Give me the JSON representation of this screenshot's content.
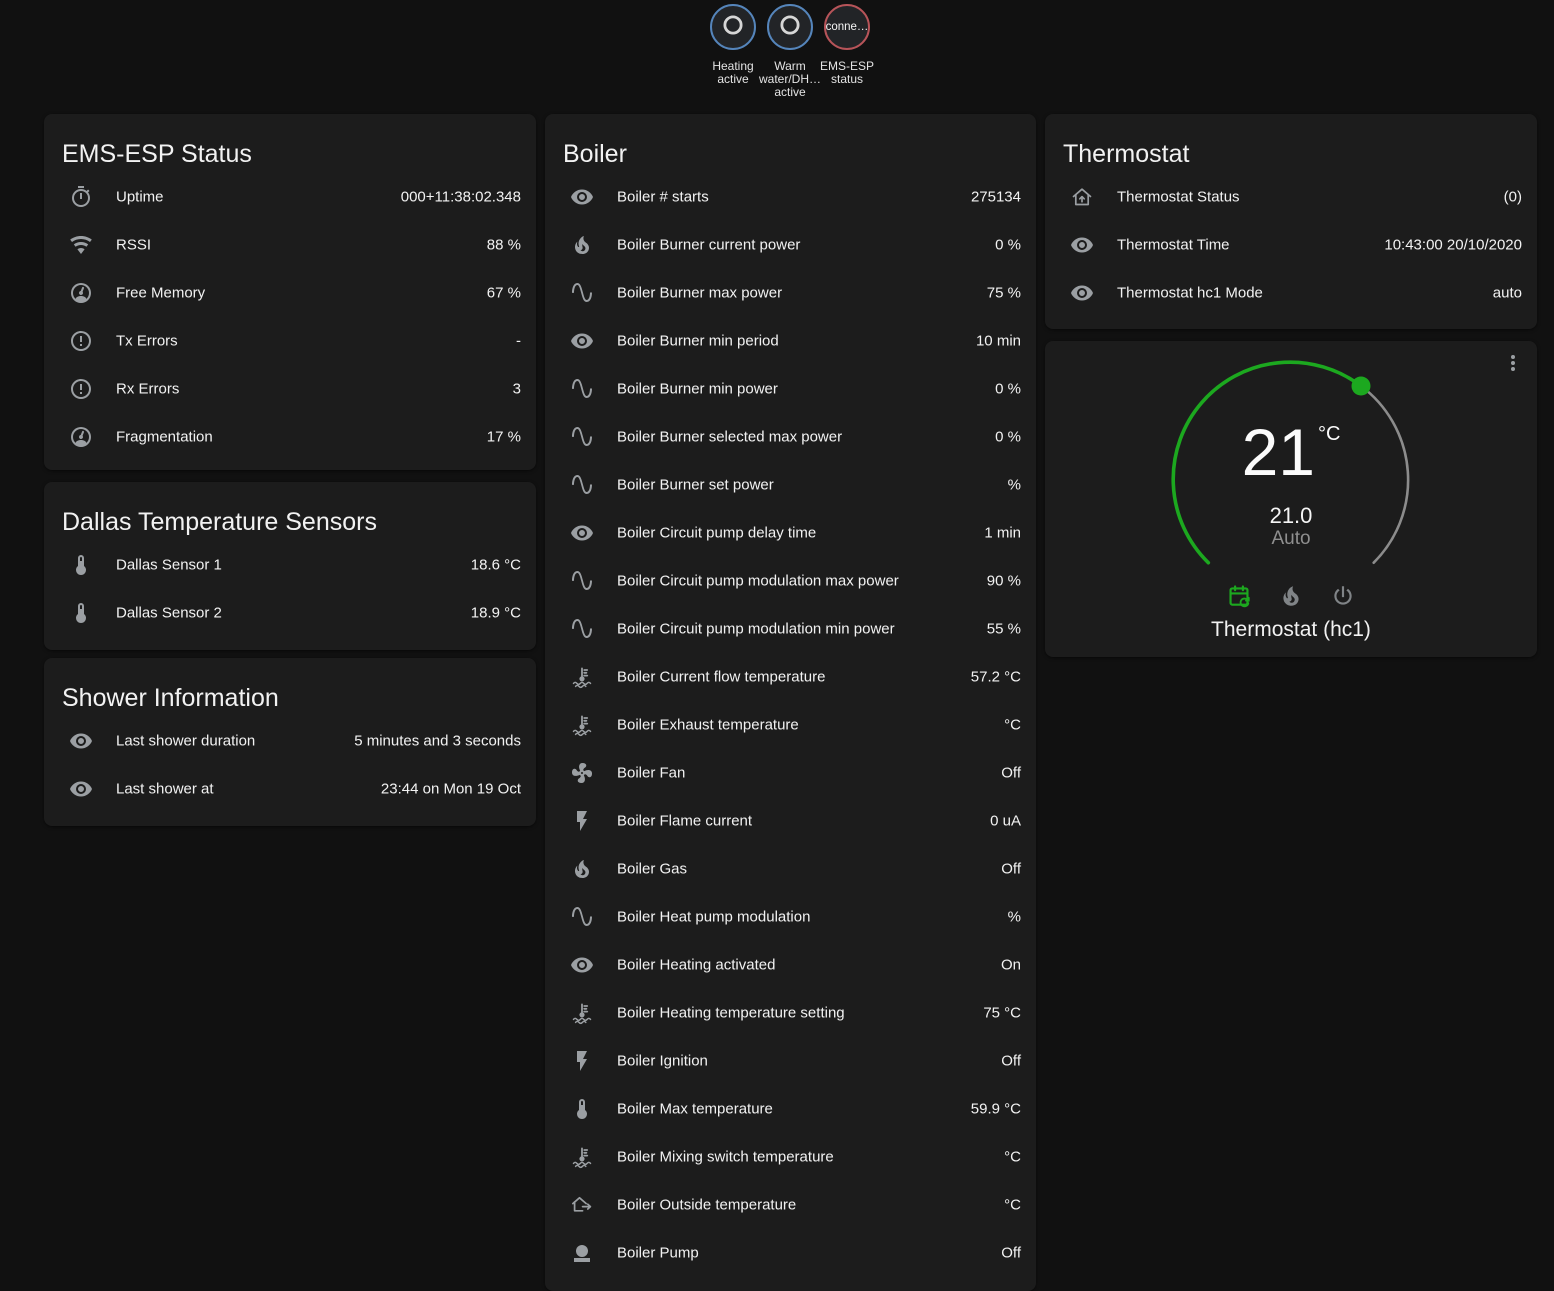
{
  "colors": {
    "accent_green": "#1ca81f",
    "badge_blue": "#5585bb",
    "badge_red": "#b75459",
    "card_background": "#1c1c1c",
    "page_background": "#111111",
    "icon_gray": "#9b9fa3"
  },
  "badges": [
    {
      "label": "Heating active",
      "icon": "ring"
    },
    {
      "label": "Warm water/DH… active",
      "icon": "ring"
    },
    {
      "label": "EMS-ESP status",
      "state": "conne…"
    }
  ],
  "cards": {
    "ems_status": {
      "title": "EMS-ESP Status",
      "rows": [
        {
          "icon": "timer",
          "label": "Uptime",
          "value": "000+11:38:02.348"
        },
        {
          "icon": "wifi",
          "label": "RSSI",
          "value": "88 %"
        },
        {
          "icon": "gauge",
          "label": "Free Memory",
          "value": "67 %"
        },
        {
          "icon": "alert-circle",
          "label": "Tx Errors",
          "value": "-"
        },
        {
          "icon": "alert-circle",
          "label": "Rx Errors",
          "value": "3"
        },
        {
          "icon": "gauge",
          "label": "Fragmentation",
          "value": "17 %"
        }
      ]
    },
    "dallas": {
      "title": "Dallas Temperature Sensors",
      "rows": [
        {
          "icon": "thermometer",
          "label": "Dallas Sensor 1",
          "value": "18.6 °C"
        },
        {
          "icon": "thermometer",
          "label": "Dallas Sensor 2",
          "value": "18.9 °C"
        }
      ]
    },
    "shower": {
      "title": "Shower Information",
      "rows": [
        {
          "icon": "eye",
          "label": "Last shower duration",
          "value": "5 minutes and 3 seconds"
        },
        {
          "icon": "eye",
          "label": "Last shower at",
          "value": "23:44 on Mon 19 Oct"
        }
      ]
    },
    "boiler": {
      "title": "Boiler",
      "rows": [
        {
          "icon": "eye",
          "label": "Boiler # starts",
          "value": "275134"
        },
        {
          "icon": "fire",
          "label": "Boiler Burner current power",
          "value": "0 %"
        },
        {
          "icon": "sine",
          "label": "Boiler Burner max power",
          "value": "75 %"
        },
        {
          "icon": "eye",
          "label": "Boiler Burner min period",
          "value": "10 min"
        },
        {
          "icon": "sine",
          "label": "Boiler Burner min power",
          "value": "0 %"
        },
        {
          "icon": "sine",
          "label": "Boiler Burner selected max power",
          "value": "0 %"
        },
        {
          "icon": "sine",
          "label": "Boiler Burner set power",
          "value": "%"
        },
        {
          "icon": "eye",
          "label": "Boiler Circuit pump delay time",
          "value": "1 min"
        },
        {
          "icon": "sine",
          "label": "Boiler Circuit pump modulation max power",
          "value": "90 %"
        },
        {
          "icon": "sine",
          "label": "Boiler Circuit pump modulation min power",
          "value": "55 %"
        },
        {
          "icon": "coolant",
          "label": "Boiler Current flow temperature",
          "value": "57.2 °C"
        },
        {
          "icon": "coolant",
          "label": "Boiler Exhaust temperature",
          "value": "°C"
        },
        {
          "icon": "fan",
          "label": "Boiler Fan",
          "value": "Off"
        },
        {
          "icon": "flash",
          "label": "Boiler Flame current",
          "value": "0 uA"
        },
        {
          "icon": "fire",
          "label": "Boiler Gas",
          "value": "Off"
        },
        {
          "icon": "sine",
          "label": "Boiler Heat pump modulation",
          "value": "%"
        },
        {
          "icon": "eye",
          "label": "Boiler Heating activated",
          "value": "On"
        },
        {
          "icon": "coolant",
          "label": "Boiler Heating temperature setting",
          "value": "75 °C"
        },
        {
          "icon": "flash",
          "label": "Boiler Ignition",
          "value": "Off"
        },
        {
          "icon": "thermometer",
          "label": "Boiler Max temperature",
          "value": "59.9 °C"
        },
        {
          "icon": "coolant",
          "label": "Boiler Mixing switch temperature",
          "value": "°C"
        },
        {
          "icon": "home-export",
          "label": "Boiler Outside temperature",
          "value": "°C"
        },
        {
          "icon": "pump",
          "label": "Boiler Pump",
          "value": "Off"
        }
      ]
    },
    "thermostat": {
      "title": "Thermostat",
      "rows": [
        {
          "icon": "home-arrow",
          "label": "Thermostat Status",
          "value": "(0)"
        },
        {
          "icon": "eye",
          "label": "Thermostat Time",
          "value": "10:43:00 20/10/2020"
        },
        {
          "icon": "eye",
          "label": "Thermostat hc1 Mode",
          "value": "auto"
        }
      ]
    },
    "thermostat_dial": {
      "temperature": "21",
      "unit": "°C",
      "target": "21.0",
      "mode_label": "Auto",
      "name": "Thermostat (hc1)"
    }
  }
}
